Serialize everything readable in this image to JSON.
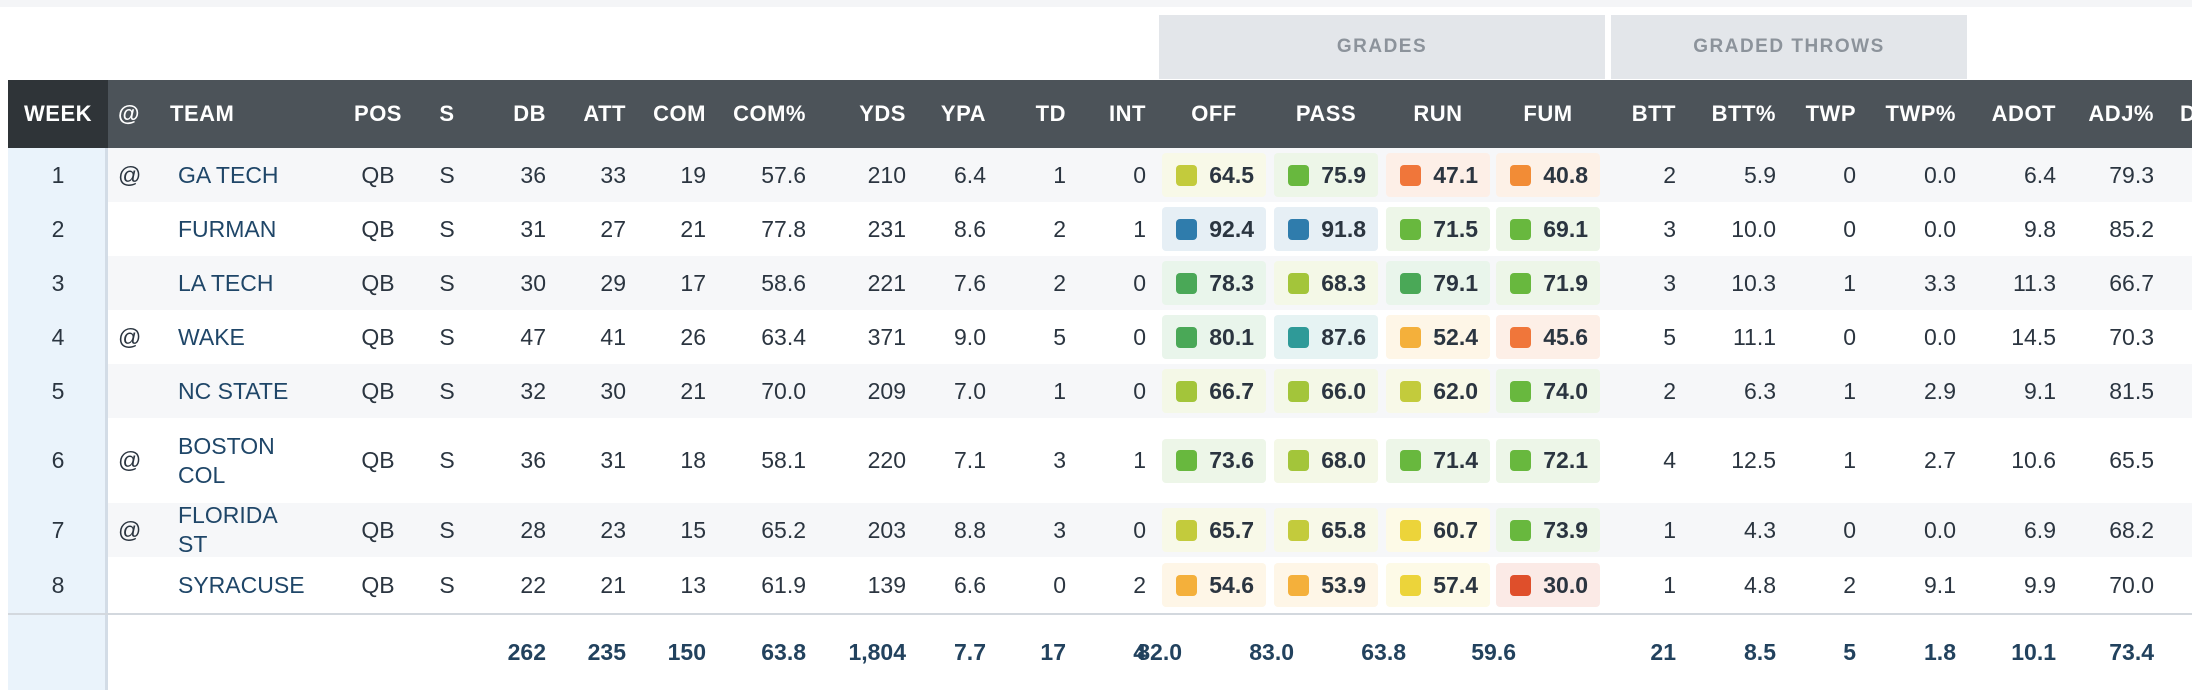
{
  "groups": {
    "grades": "GRADES",
    "graded_throws": "GRADED THROWS"
  },
  "headers": [
    "WEEK",
    "@",
    "TEAM",
    "POS",
    "S",
    "DB",
    "ATT",
    "COM",
    "COM%",
    "YDS",
    "YPA",
    "TD",
    "INT",
    "OFF",
    "PASS",
    "RUN",
    "FUM",
    "BTT",
    "BTT%",
    "TWP",
    "TWP%",
    "ADOT",
    "ADJ%",
    "D"
  ],
  "rows": [
    {
      "week": "1",
      "at": "@",
      "team": "GA TECH",
      "pos": "QB",
      "s": "S",
      "db": "36",
      "att": "33",
      "com": "19",
      "comp": "57.6",
      "yds": "210",
      "ypa": "6.4",
      "td": "1",
      "int": "0",
      "off": "64.5",
      "pass": "75.9",
      "run": "47.1",
      "fum": "40.8",
      "btt": "2",
      "bttp": "5.9",
      "twp": "0",
      "twpp": "0.0",
      "adot": "6.4",
      "adj": "79.3"
    },
    {
      "week": "2",
      "at": "",
      "team": "FURMAN",
      "pos": "QB",
      "s": "S",
      "db": "31",
      "att": "27",
      "com": "21",
      "comp": "77.8",
      "yds": "231",
      "ypa": "8.6",
      "td": "2",
      "int": "1",
      "off": "92.4",
      "pass": "91.8",
      "run": "71.5",
      "fum": "69.1",
      "btt": "3",
      "bttp": "10.0",
      "twp": "0",
      "twpp": "0.0",
      "adot": "9.8",
      "adj": "85.2"
    },
    {
      "week": "3",
      "at": "",
      "team": "LA TECH",
      "pos": "QB",
      "s": "S",
      "db": "30",
      "att": "29",
      "com": "17",
      "comp": "58.6",
      "yds": "221",
      "ypa": "7.6",
      "td": "2",
      "int": "0",
      "off": "78.3",
      "pass": "68.3",
      "run": "79.1",
      "fum": "71.9",
      "btt": "3",
      "bttp": "10.3",
      "twp": "1",
      "twpp": "3.3",
      "adot": "11.3",
      "adj": "66.7"
    },
    {
      "week": "4",
      "at": "@",
      "team": "WAKE",
      "pos": "QB",
      "s": "S",
      "db": "47",
      "att": "41",
      "com": "26",
      "comp": "63.4",
      "yds": "371",
      "ypa": "9.0",
      "td": "5",
      "int": "0",
      "off": "80.1",
      "pass": "87.6",
      "run": "52.4",
      "fum": "45.6",
      "btt": "5",
      "bttp": "11.1",
      "twp": "0",
      "twpp": "0.0",
      "adot": "14.5",
      "adj": "70.3"
    },
    {
      "week": "5",
      "at": "",
      "team": "NC STATE",
      "pos": "QB",
      "s": "S",
      "db": "32",
      "att": "30",
      "com": "21",
      "comp": "70.0",
      "yds": "209",
      "ypa": "7.0",
      "td": "1",
      "int": "0",
      "off": "66.7",
      "pass": "66.0",
      "run": "62.0",
      "fum": "74.0",
      "btt": "2",
      "bttp": "6.3",
      "twp": "1",
      "twpp": "2.9",
      "adot": "9.1",
      "adj": "81.5"
    },
    {
      "week": "6",
      "at": "@",
      "team": "BOSTON COL",
      "pos": "QB",
      "s": "S",
      "db": "36",
      "att": "31",
      "com": "18",
      "comp": "58.1",
      "yds": "220",
      "ypa": "7.1",
      "td": "3",
      "int": "1",
      "off": "73.6",
      "pass": "68.0",
      "run": "71.4",
      "fum": "72.1",
      "btt": "4",
      "bttp": "12.5",
      "twp": "1",
      "twpp": "2.7",
      "adot": "10.6",
      "adj": "65.5"
    },
    {
      "week": "7",
      "at": "@",
      "team": "FLORIDA ST",
      "pos": "QB",
      "s": "S",
      "db": "28",
      "att": "23",
      "com": "15",
      "comp": "65.2",
      "yds": "203",
      "ypa": "8.8",
      "td": "3",
      "int": "0",
      "off": "65.7",
      "pass": "65.8",
      "run": "60.7",
      "fum": "73.9",
      "btt": "1",
      "bttp": "4.3",
      "twp": "0",
      "twpp": "0.0",
      "adot": "6.9",
      "adj": "68.2"
    },
    {
      "week": "8",
      "at": "",
      "team": "SYRACUSE",
      "pos": "QB",
      "s": "S",
      "db": "22",
      "att": "21",
      "com": "13",
      "comp": "61.9",
      "yds": "139",
      "ypa": "6.6",
      "td": "0",
      "int": "2",
      "off": "54.6",
      "pass": "53.9",
      "run": "57.4",
      "fum": "30.0",
      "btt": "1",
      "bttp": "4.8",
      "twp": "2",
      "twpp": "9.1",
      "adot": "9.9",
      "adj": "70.0"
    }
  ],
  "totals": {
    "db": "262",
    "att": "235",
    "com": "150",
    "comp": "63.8",
    "yds": "1,804",
    "ypa": "7.7",
    "td": "17",
    "int": "4",
    "off": "82.0",
    "pass": "83.0",
    "run": "63.8",
    "fum": "59.6",
    "btt": "21",
    "bttp": "8.5",
    "twp": "5",
    "twpp": "1.8",
    "adot": "10.1",
    "adj": "73.4"
  },
  "grade_colors": {
    "elite": "#2f7cac",
    "teal": "#2f9a98",
    "high": "#4aa857",
    "good": "#68b83e",
    "above": "#a3c53a",
    "average": "#c3cb3c",
    "yellow": "#ecd43a",
    "orange_light": "#f4b03b",
    "orange": "#f28c36",
    "orange_dark": "#f0763a",
    "red": "#df4f2b"
  }
}
